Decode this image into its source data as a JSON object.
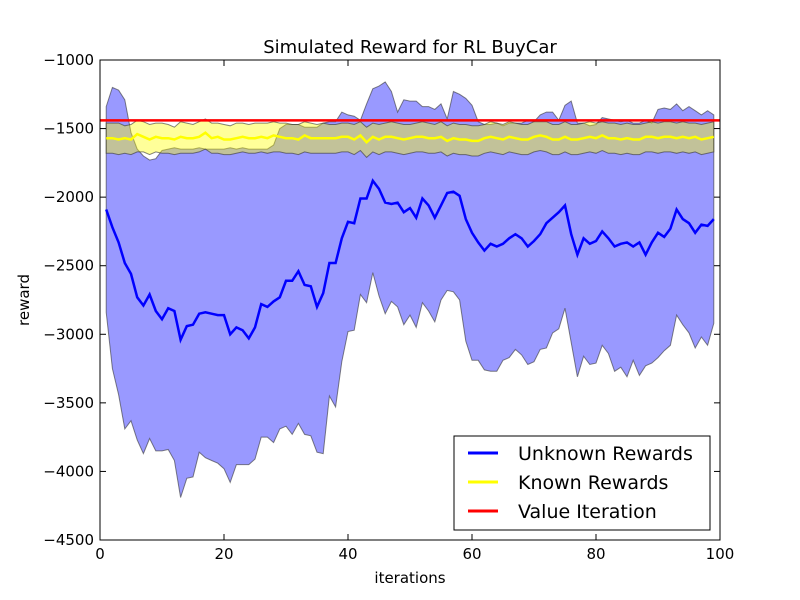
{
  "chart_data": {
    "type": "line",
    "title": "Simulated Reward for RL BuyCar",
    "xlabel": "iterations",
    "ylabel": "reward",
    "xlim": [
      0,
      100
    ],
    "ylim": [
      -4500,
      -1000
    ],
    "xticks": [
      0,
      20,
      40,
      60,
      80,
      100
    ],
    "yticks": [
      -1000,
      -1500,
      -2000,
      -2500,
      -3000,
      -3500,
      -4000,
      -4500
    ],
    "xtick_labels": [
      "0",
      "20",
      "40",
      "60",
      "80",
      "100"
    ],
    "ytick_labels": [
      "−1000",
      "−1500",
      "−2000",
      "−2500",
      "−3000",
      "−3500",
      "−4000",
      "−4500"
    ],
    "grid": false,
    "legend_position": "lower-right",
    "x": [
      1,
      2,
      3,
      4,
      5,
      6,
      7,
      8,
      9,
      10,
      11,
      12,
      13,
      14,
      15,
      16,
      17,
      18,
      19,
      20,
      21,
      22,
      23,
      24,
      25,
      26,
      27,
      28,
      29,
      30,
      31,
      32,
      33,
      34,
      35,
      36,
      37,
      38,
      39,
      40,
      41,
      42,
      43,
      44,
      45,
      46,
      47,
      48,
      49,
      50,
      51,
      52,
      53,
      54,
      55,
      56,
      57,
      58,
      59,
      60,
      61,
      62,
      63,
      64,
      65,
      66,
      67,
      68,
      69,
      70,
      71,
      72,
      73,
      74,
      75,
      76,
      77,
      78,
      79,
      80,
      81,
      82,
      83,
      84,
      85,
      86,
      87,
      88,
      89,
      90,
      91,
      92,
      93,
      94,
      95,
      96,
      97,
      98,
      99
    ],
    "series": [
      {
        "name": "Unknown Rewards",
        "color": "#0000ff",
        "values": [
          -2090,
          -2220,
          -2330,
          -2480,
          -2560,
          -2730,
          -2790,
          -2710,
          -2830,
          -2890,
          -2810,
          -2830,
          -3040,
          -2940,
          -2930,
          -2850,
          -2840,
          -2850,
          -2860,
          -2860,
          -3000,
          -2950,
          -2970,
          -3030,
          -2950,
          -2780,
          -2800,
          -2760,
          -2730,
          -2610,
          -2610,
          -2540,
          -2640,
          -2650,
          -2800,
          -2700,
          -2480,
          -2480,
          -2300,
          -2180,
          -2190,
          -2010,
          -2010,
          -1880,
          -1940,
          -2040,
          -2050,
          -2040,
          -2110,
          -2080,
          -2150,
          -2010,
          -2060,
          -2150,
          -2060,
          -1970,
          -1960,
          -1990,
          -2160,
          -2260,
          -2330,
          -2390,
          -2340,
          -2360,
          -2340,
          -2300,
          -2270,
          -2300,
          -2360,
          -2320,
          -2270,
          -2190,
          -2150,
          -2110,
          -2060,
          -2270,
          -2420,
          -2300,
          -2340,
          -2320,
          -2250,
          -2300,
          -2360,
          -2340,
          -2330,
          -2360,
          -2330,
          -2420,
          -2330,
          -2260,
          -2290,
          -2230,
          -2090,
          -2160,
          -2190,
          -2260,
          -2200,
          -2210,
          -2160
        ],
        "upper": [
          -1340,
          -1200,
          -1220,
          -1290,
          -1530,
          -1650,
          -1700,
          -1730,
          -1720,
          -1660,
          -1650,
          -1640,
          -1650,
          -1650,
          -1650,
          -1640,
          -1650,
          -1650,
          -1650,
          -1650,
          -1640,
          -1650,
          -1640,
          -1650,
          -1650,
          -1650,
          -1650,
          -1620,
          -1500,
          -1470,
          -1470,
          -1470,
          -1490,
          -1490,
          -1490,
          -1460,
          -1450,
          -1450,
          -1380,
          -1400,
          -1410,
          -1440,
          -1320,
          -1210,
          -1190,
          -1160,
          -1230,
          -1380,
          -1290,
          -1300,
          -1300,
          -1340,
          -1340,
          -1360,
          -1320,
          -1430,
          -1230,
          -1250,
          -1280,
          -1330,
          -1450,
          -1470,
          -1470,
          -1460,
          -1480,
          -1460,
          -1460,
          -1460,
          -1440,
          -1450,
          -1400,
          -1380,
          -1380,
          -1440,
          -1330,
          -1300,
          -1460,
          -1460,
          -1480,
          -1470,
          -1420,
          -1430,
          -1440,
          -1450,
          -1440,
          -1460,
          -1460,
          -1440,
          -1460,
          -1360,
          -1350,
          -1360,
          -1320,
          -1370,
          -1340,
          -1370,
          -1400,
          -1370,
          -1400
        ],
        "lower": [
          -2840,
          -3250,
          -3440,
          -3690,
          -3630,
          -3770,
          -3870,
          -3760,
          -3850,
          -3850,
          -3840,
          -3920,
          -4190,
          -4050,
          -4040,
          -3860,
          -3900,
          -3920,
          -3940,
          -3980,
          -4080,
          -3950,
          -3950,
          -3950,
          -3910,
          -3750,
          -3750,
          -3790,
          -3690,
          -3670,
          -3730,
          -3650,
          -3730,
          -3740,
          -3860,
          -3870,
          -3450,
          -3530,
          -3200,
          -2980,
          -2970,
          -2710,
          -2770,
          -2550,
          -2720,
          -2850,
          -2760,
          -2800,
          -2930,
          -2860,
          -2950,
          -2770,
          -2830,
          -2910,
          -2750,
          -2680,
          -2690,
          -2750,
          -3050,
          -3190,
          -3190,
          -3260,
          -3270,
          -3270,
          -3190,
          -3170,
          -3110,
          -3150,
          -3220,
          -3200,
          -3110,
          -3100,
          -2990,
          -2960,
          -2810,
          -3060,
          -3310,
          -3160,
          -3220,
          -3210,
          -3080,
          -3140,
          -3270,
          -3240,
          -3310,
          -3190,
          -3300,
          -3230,
          -3210,
          -3170,
          -3120,
          -3080,
          -2860,
          -2930,
          -2990,
          -3100,
          -3020,
          -3080,
          -2920
        ]
      },
      {
        "name": "Known Rewards",
        "color": "#ffff00",
        "values": [
          -1570,
          -1570,
          -1580,
          -1570,
          -1580,
          -1540,
          -1560,
          -1580,
          -1560,
          -1570,
          -1570,
          -1580,
          -1560,
          -1570,
          -1570,
          -1560,
          -1530,
          -1570,
          -1560,
          -1580,
          -1580,
          -1570,
          -1560,
          -1570,
          -1570,
          -1560,
          -1570,
          -1550,
          -1560,
          -1570,
          -1570,
          -1580,
          -1550,
          -1570,
          -1570,
          -1570,
          -1570,
          -1570,
          -1560,
          -1560,
          -1580,
          -1550,
          -1600,
          -1560,
          -1580,
          -1560,
          -1560,
          -1570,
          -1580,
          -1570,
          -1560,
          -1560,
          -1570,
          -1570,
          -1560,
          -1590,
          -1570,
          -1580,
          -1580,
          -1590,
          -1590,
          -1570,
          -1560,
          -1570,
          -1580,
          -1560,
          -1570,
          -1580,
          -1580,
          -1560,
          -1550,
          -1560,
          -1580,
          -1580,
          -1560,
          -1580,
          -1580,
          -1570,
          -1560,
          -1570,
          -1550,
          -1570,
          -1570,
          -1580,
          -1570,
          -1580,
          -1580,
          -1560,
          -1560,
          -1570,
          -1560,
          -1560,
          -1570,
          -1560,
          -1570,
          -1560,
          -1580,
          -1570,
          -1560
        ],
        "upper": [
          -1460,
          -1460,
          -1460,
          -1480,
          -1470,
          -1440,
          -1450,
          -1470,
          -1460,
          -1460,
          -1470,
          -1490,
          -1450,
          -1460,
          -1470,
          -1450,
          -1430,
          -1460,
          -1460,
          -1470,
          -1480,
          -1460,
          -1460,
          -1470,
          -1460,
          -1460,
          -1460,
          -1450,
          -1460,
          -1460,
          -1470,
          -1470,
          -1450,
          -1460,
          -1470,
          -1460,
          -1470,
          -1470,
          -1460,
          -1460,
          -1470,
          -1450,
          -1490,
          -1460,
          -1470,
          -1460,
          -1450,
          -1460,
          -1470,
          -1470,
          -1460,
          -1450,
          -1460,
          -1470,
          -1450,
          -1480,
          -1460,
          -1470,
          -1470,
          -1480,
          -1480,
          -1470,
          -1450,
          -1460,
          -1470,
          -1450,
          -1460,
          -1470,
          -1470,
          -1450,
          -1450,
          -1450,
          -1470,
          -1470,
          -1450,
          -1470,
          -1470,
          -1460,
          -1450,
          -1460,
          -1450,
          -1460,
          -1460,
          -1470,
          -1460,
          -1470,
          -1470,
          -1460,
          -1450,
          -1460,
          -1450,
          -1450,
          -1460,
          -1450,
          -1460,
          -1460,
          -1470,
          -1460,
          -1450
        ],
        "lower": [
          -1680,
          -1680,
          -1690,
          -1680,
          -1690,
          -1670,
          -1670,
          -1690,
          -1670,
          -1680,
          -1680,
          -1690,
          -1680,
          -1680,
          -1680,
          -1670,
          -1650,
          -1680,
          -1680,
          -1690,
          -1690,
          -1680,
          -1670,
          -1680,
          -1680,
          -1670,
          -1680,
          -1670,
          -1670,
          -1680,
          -1680,
          -1690,
          -1670,
          -1680,
          -1680,
          -1680,
          -1680,
          -1680,
          -1670,
          -1670,
          -1690,
          -1660,
          -1710,
          -1670,
          -1690,
          -1670,
          -1670,
          -1680,
          -1690,
          -1680,
          -1670,
          -1670,
          -1680,
          -1680,
          -1670,
          -1700,
          -1680,
          -1690,
          -1690,
          -1700,
          -1700,
          -1680,
          -1670,
          -1680,
          -1690,
          -1670,
          -1680,
          -1690,
          -1690,
          -1670,
          -1660,
          -1670,
          -1690,
          -1690,
          -1670,
          -1690,
          -1690,
          -1680,
          -1670,
          -1680,
          -1660,
          -1680,
          -1680,
          -1690,
          -1680,
          -1690,
          -1690,
          -1670,
          -1670,
          -1680,
          -1670,
          -1670,
          -1680,
          -1670,
          -1680,
          -1670,
          -1690,
          -1680,
          -1670
        ]
      },
      {
        "name": "Value Iteration",
        "color": "#ff0000",
        "constant": -1440
      }
    ]
  }
}
